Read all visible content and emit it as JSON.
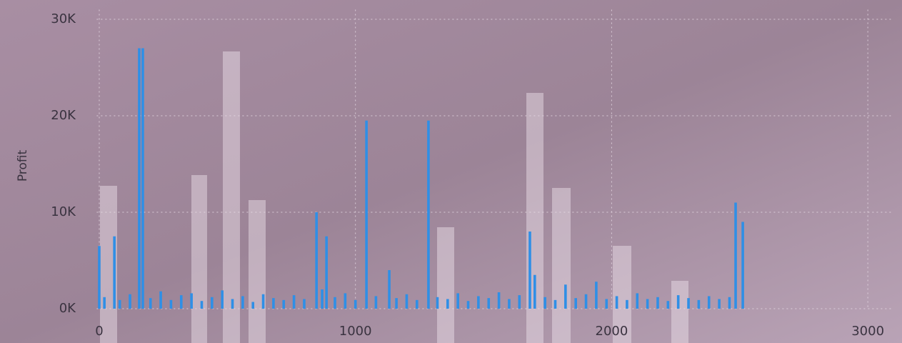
{
  "chart_data": {
    "type": "bar",
    "y_label": "Profit",
    "color": "#2f8fe6",
    "grid": true,
    "xlim": [
      -10,
      3100
    ],
    "ylim": [
      0,
      31000
    ],
    "xticks": [
      0,
      1000,
      2000,
      3000
    ],
    "yticks": [
      {
        "value": 0,
        "label": "0K"
      },
      {
        "value": 10000,
        "label": "10K"
      },
      {
        "value": 20000,
        "label": "20K"
      },
      {
        "value": 30000,
        "label": "30K"
      }
    ],
    "x": [
      0,
      20,
      59,
      80,
      120,
      156,
      170,
      200,
      240,
      280,
      320,
      360,
      400,
      440,
      480,
      520,
      560,
      600,
      640,
      680,
      720,
      760,
      800,
      848,
      870,
      887,
      920,
      960,
      1000,
      1043,
      1080,
      1132,
      1160,
      1200,
      1240,
      1285,
      1320,
      1360,
      1400,
      1440,
      1480,
      1520,
      1560,
      1600,
      1640,
      1681,
      1700,
      1740,
      1780,
      1820,
      1860,
      1900,
      1940,
      1980,
      2020,
      2060,
      2100,
      2140,
      2180,
      2220,
      2260,
      2300,
      2340,
      2380,
      2420,
      2460,
      2484,
      2512
    ],
    "values": [
      6500,
      1200,
      7500,
      900,
      1500,
      27000,
      27000,
      1100,
      1800,
      900,
      1400,
      1600,
      800,
      1200,
      1900,
      1000,
      1300,
      700,
      1500,
      1100,
      900,
      1400,
      1000,
      10000,
      2000,
      7500,
      1200,
      1600,
      900,
      19500,
      1300,
      4000,
      1100,
      1500,
      900,
      19500,
      1200,
      1000,
      1600,
      800,
      1300,
      1100,
      1700,
      1000,
      1400,
      8000,
      3500,
      1200,
      900,
      2500,
      1100,
      1500,
      2800,
      1000,
      1300,
      900,
      1600,
      1000,
      1200,
      800,
      1400,
      1100,
      900,
      1300,
      1000,
      1200,
      11000,
      9000
    ]
  }
}
